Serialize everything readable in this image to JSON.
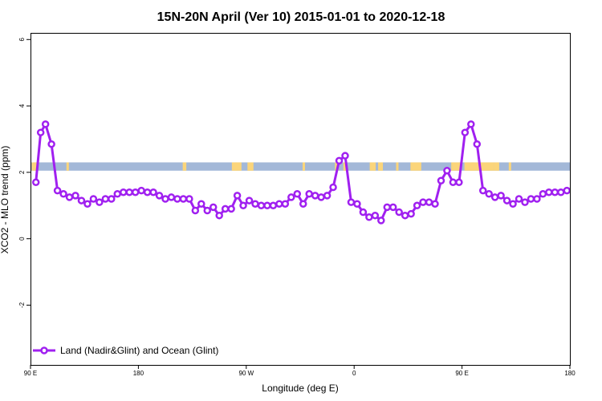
{
  "chart_data": {
    "type": "line",
    "title": "15N-20N April (Ver 10)   2015-01-01 to 2020-12-18",
    "xlabel": "Longitude (deg E)",
    "ylabel": "XCO2 - MLO trend (ppm)",
    "xlim": [
      90,
      540
    ],
    "ylim": [
      -3.8,
      6.2
    ],
    "x_ticks": [
      {
        "value": 90,
        "label": "90 E"
      },
      {
        "value": 180,
        "label": "180"
      },
      {
        "value": 270,
        "label": "90 W"
      },
      {
        "value": 360,
        "label": "0"
      },
      {
        "value": 450,
        "label": "90 E"
      },
      {
        "value": 540,
        "label": "180"
      }
    ],
    "y_ticks": [
      {
        "value": -2,
        "label": "-2"
      },
      {
        "value": 0,
        "label": "0"
      },
      {
        "value": 2,
        "label": "2"
      },
      {
        "value": 4,
        "label": "4"
      },
      {
        "value": 6,
        "label": "6"
      }
    ],
    "band": {
      "y_min": 2.05,
      "y_max": 2.3,
      "ocean_color": "#a3b8d8",
      "land_color": "#fbd57a",
      "land_x": [
        [
          91,
          96
        ],
        [
          120,
          122
        ],
        [
          217,
          220
        ],
        [
          258,
          262
        ],
        [
          261,
          266
        ],
        [
          271,
          276
        ],
        [
          317,
          319
        ],
        [
          344,
          347
        ],
        [
          351,
          354
        ],
        [
          373,
          378
        ],
        [
          380,
          384
        ],
        [
          395,
          397
        ],
        [
          407,
          416
        ],
        [
          441,
          449
        ],
        [
          452,
          460
        ],
        [
          457,
          477
        ],
        [
          477,
          481
        ],
        [
          489,
          491
        ]
      ]
    },
    "legend": {
      "position": "bottom-left"
    },
    "series": [
      {
        "name": "Land (Nadir&Glint) and Ocean (Glint)",
        "color": "#a020f0",
        "x": [
          94.5,
          98.5,
          102.5,
          107.5,
          112.5,
          117.5,
          122.5,
          127.5,
          132.5,
          137.5,
          142.5,
          147.5,
          152.5,
          157.5,
          162.5,
          167.5,
          172.5,
          177.5,
          182.5,
          187.5,
          192.5,
          197.5,
          202.5,
          207.5,
          212.5,
          217.5,
          222.5,
          227.5,
          232.5,
          237.5,
          242.5,
          247.5,
          252.5,
          257.5,
          262.5,
          267.5,
          272.5,
          277.5,
          282.5,
          287.5,
          292.5,
          297.5,
          302.5,
          307.5,
          312.5,
          317.5,
          322.5,
          327.5,
          332.5,
          337.5,
          342.5,
          347.5,
          352.5,
          357.5,
          362.5,
          367.5,
          372.5,
          377.5,
          382.5,
          387.5,
          392.5,
          397.5,
          402.5,
          407.5,
          412.5,
          417.5,
          422.5,
          427.5,
          432.5,
          437.5,
          442.5,
          447.5,
          452.5,
          457.5,
          462.5,
          467.5,
          472.5,
          477.5,
          482.5,
          487.5,
          492.5,
          497.5,
          502.5,
          507.5,
          512.5,
          517.5,
          522.5,
          527.5,
          532.5,
          537.5
        ],
        "values": [
          1.7,
          3.2,
          3.45,
          2.85,
          1.45,
          1.35,
          1.25,
          1.3,
          1.15,
          1.05,
          1.2,
          1.1,
          1.2,
          1.2,
          1.35,
          1.4,
          1.4,
          1.4,
          1.45,
          1.4,
          1.4,
          1.3,
          1.2,
          1.25,
          1.2,
          1.2,
          1.2,
          0.85,
          1.05,
          0.85,
          0.95,
          0.7,
          0.9,
          0.9,
          1.3,
          1.0,
          1.15,
          1.05,
          1.0,
          1.0,
          1.0,
          1.05,
          1.05,
          1.25,
          1.35,
          1.05,
          1.35,
          1.3,
          1.25,
          1.3,
          1.55,
          2.35,
          2.5,
          1.1,
          1.05,
          0.8,
          0.65,
          0.7,
          0.55,
          0.95,
          0.95,
          0.8,
          0.7,
          0.75,
          1.0,
          1.1,
          1.1,
          1.05,
          1.75,
          2.05,
          1.7,
          1.7,
          3.2,
          3.45,
          2.85,
          1.45,
          1.35,
          1.25,
          1.3,
          1.15,
          1.05,
          1.2,
          1.1,
          1.2,
          1.2,
          1.35,
          1.4,
          1.4,
          1.4,
          1.45
        ]
      }
    ]
  }
}
